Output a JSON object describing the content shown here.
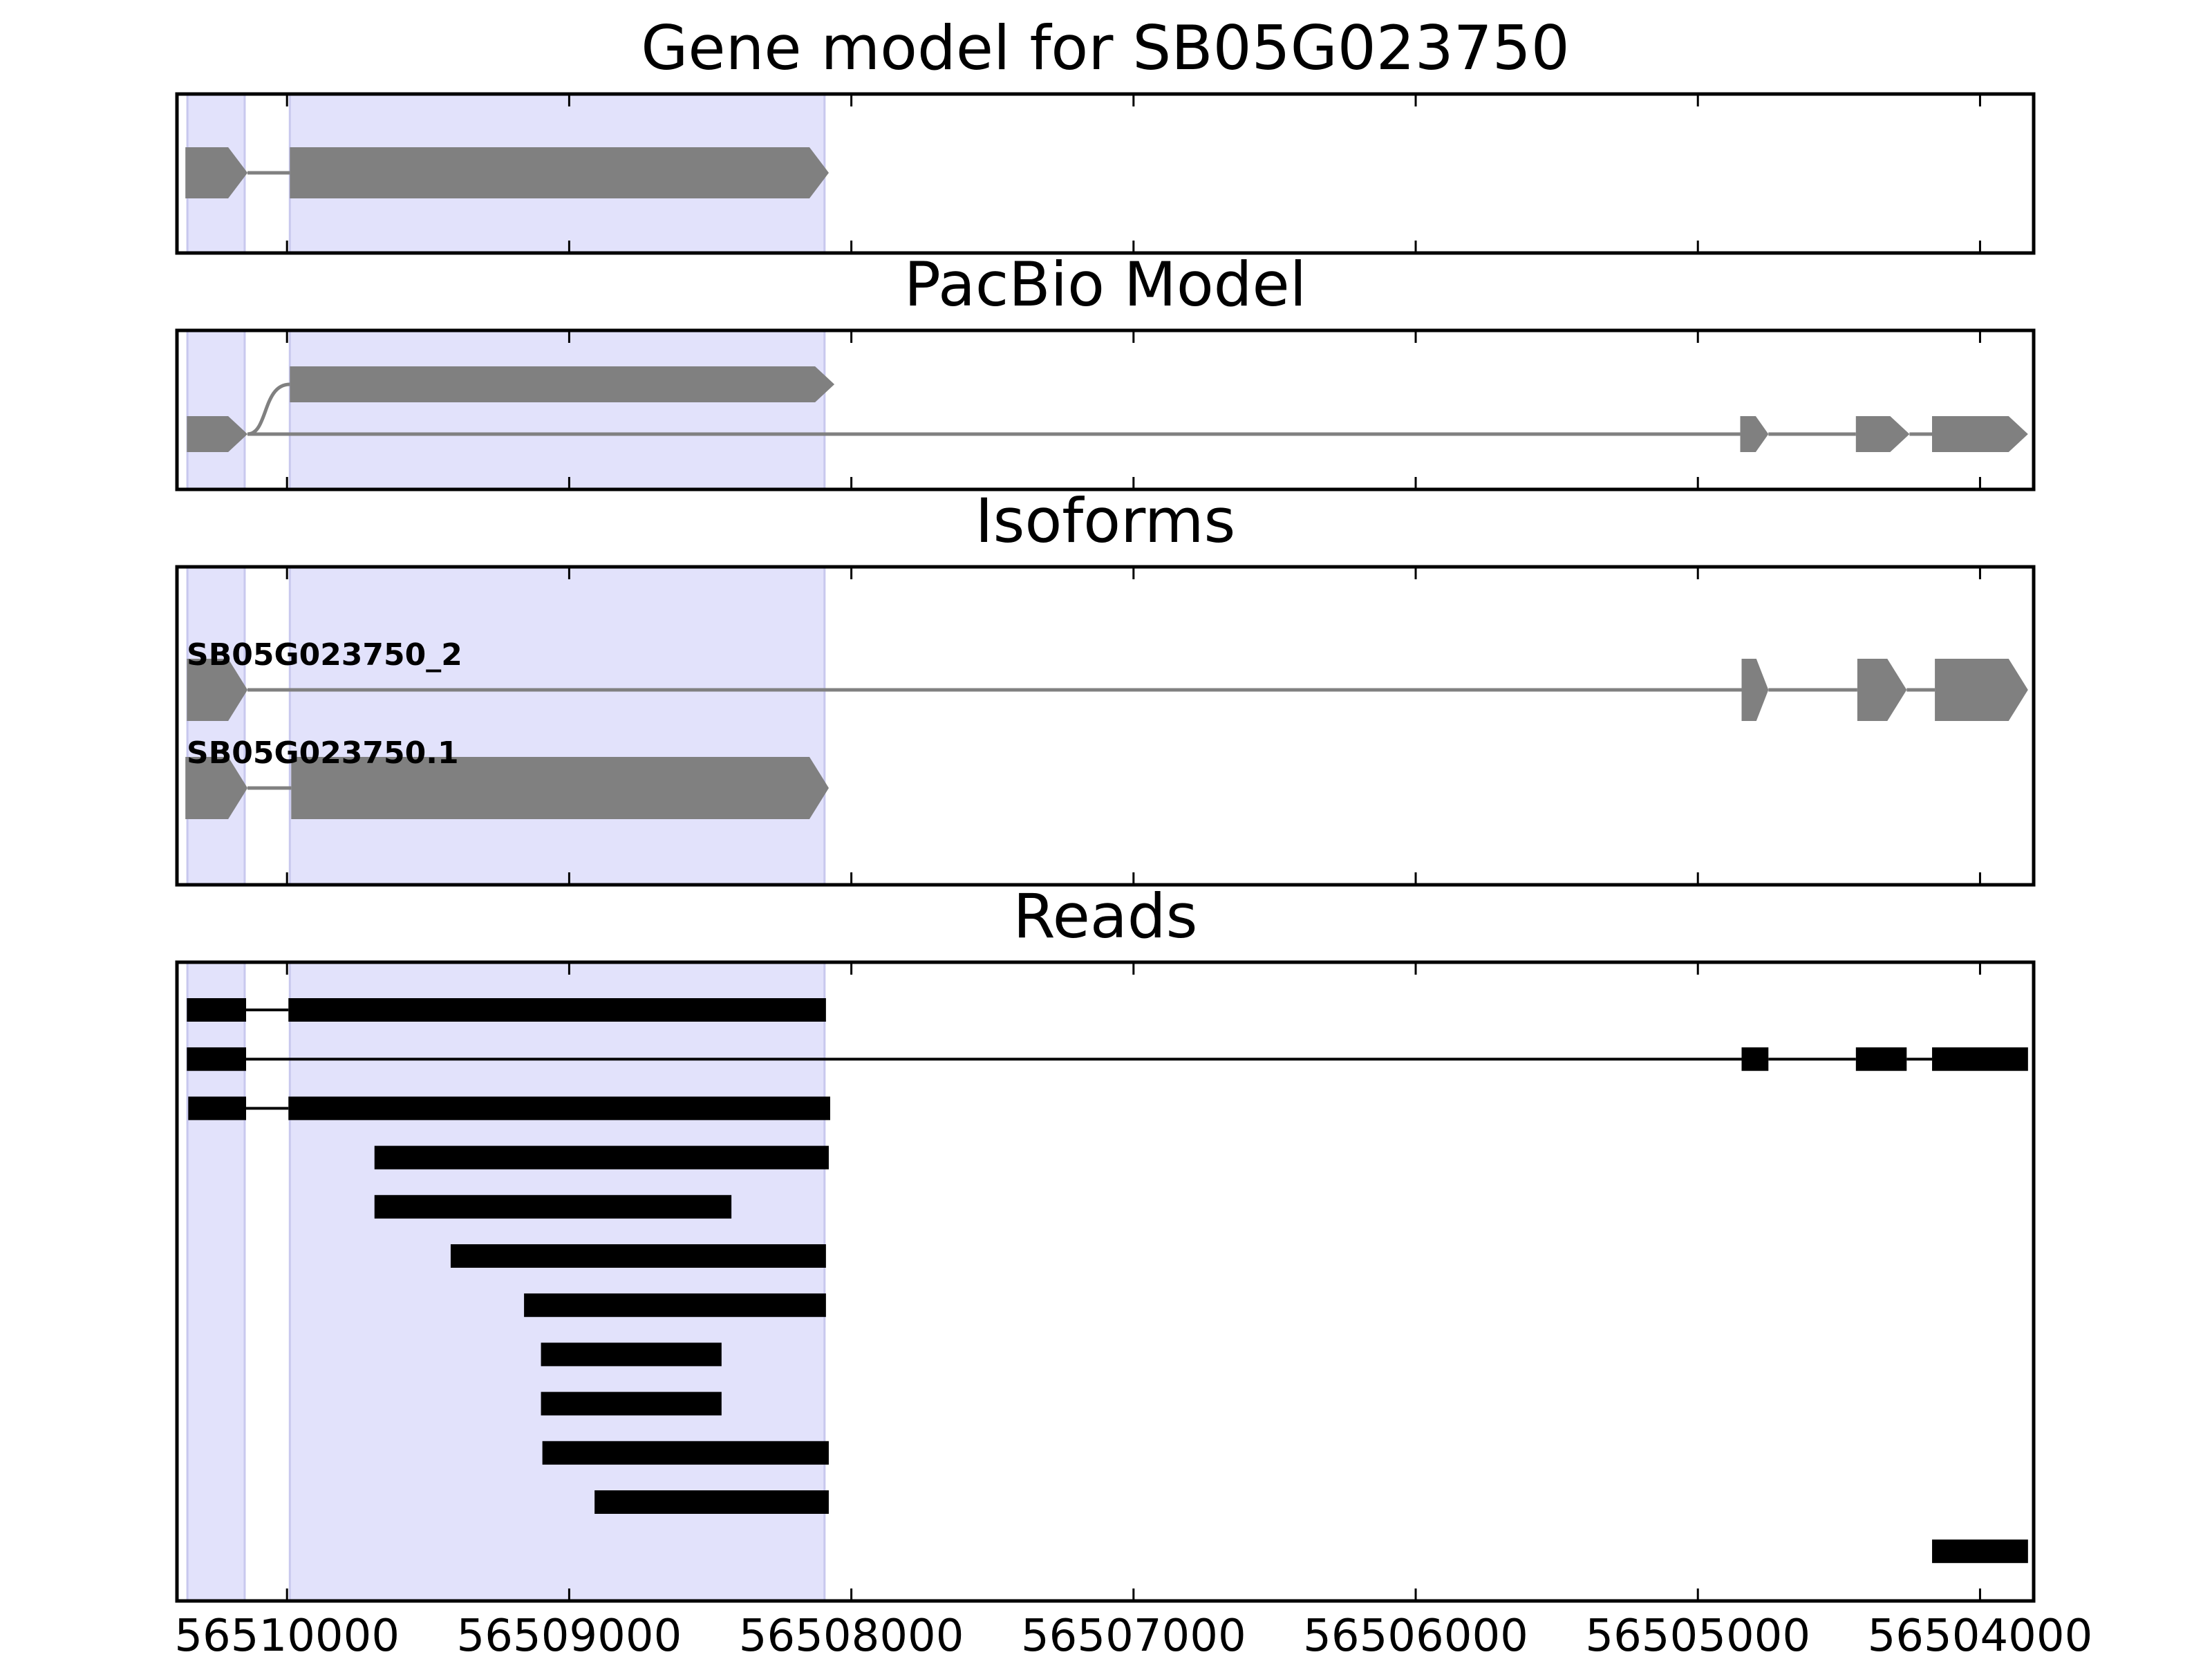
{
  "chart_data": {
    "type": "gene-track",
    "xlim": [
      56510390,
      56503810
    ],
    "xaxis": {
      "reversed": true,
      "ticks": [
        56510000,
        56509000,
        56508000,
        56507000,
        56506000,
        56505000,
        56504000
      ],
      "tick_labels": [
        "56510000",
        "56509000",
        "56508000",
        "56507000",
        "56506000",
        "56505000",
        "56504000"
      ]
    },
    "colors": {
      "highlight": "#e2e2fb",
      "highlight_edge": "#c8c8ee",
      "feature": "#808080",
      "read": "#000000",
      "frame": "#000000"
    },
    "highlight_regions": [
      [
        56510353,
        56510150
      ],
      [
        56509990,
        56508095
      ]
    ],
    "panels": [
      {
        "title": "Gene model for SB05G023750",
        "models": [
          {
            "exons": [
              [
                56510360,
                56510140
              ],
              [
                56509990,
                56508080
              ]
            ],
            "intron": "straight"
          }
        ]
      },
      {
        "title": "PacBio Model",
        "models": [
          {
            "exons": [
              [
                56510355,
                56510140
              ],
              [
                56509990,
                56508060
              ]
            ],
            "intron": "curve-up"
          },
          {
            "exons": [
              [
                56510355,
                56510140
              ],
              [
                56504850,
                56504750
              ],
              [
                56504440,
                56504250
              ],
              [
                56504170,
                56503830
              ]
            ],
            "intron": "straight"
          }
        ]
      },
      {
        "title": "Isoforms",
        "models": [
          {
            "label": "SB05G023750_2",
            "exons": [
              [
                56510355,
                56510140
              ],
              [
                56504845,
                56504750
              ],
              [
                56504435,
                56504260
              ],
              [
                56504160,
                56503830
              ]
            ],
            "intron": "straight"
          },
          {
            "label": "SB05G023750.1",
            "exons": [
              [
                56510360,
                56510140
              ],
              [
                56509985,
                56508080
              ]
            ],
            "intron": "straight"
          }
        ]
      },
      {
        "title": "Reads",
        "reads": [
          {
            "blocks": [
              [
                56510355,
                56510145
              ],
              [
                56509995,
                56508090
              ]
            ]
          },
          {
            "blocks": [
              [
                56510355,
                56510145
              ],
              [
                56504845,
                56504750
              ],
              [
                56504440,
                56504260
              ],
              [
                56504170,
                56503830
              ]
            ]
          },
          {
            "blocks": [
              [
                56510350,
                56510145
              ],
              [
                56509995,
                56508075
              ]
            ]
          },
          {
            "blocks": [
              [
                56509690,
                56508080
              ]
            ]
          },
          {
            "blocks": [
              [
                56509690,
                56508425
              ]
            ]
          },
          {
            "blocks": [
              [
                56509420,
                56508090
              ]
            ]
          },
          {
            "blocks": [
              [
                56509160,
                56508090
              ]
            ]
          },
          {
            "blocks": [
              [
                56509100,
                56508460
              ]
            ]
          },
          {
            "blocks": [
              [
                56509100,
                56508460
              ]
            ]
          },
          {
            "blocks": [
              [
                56509095,
                56508080
              ]
            ]
          },
          {
            "blocks": [
              [
                56508910,
                56508080
              ]
            ]
          },
          {
            "blocks": [
              [
                56504170,
                56503830
              ]
            ]
          }
        ]
      }
    ]
  }
}
